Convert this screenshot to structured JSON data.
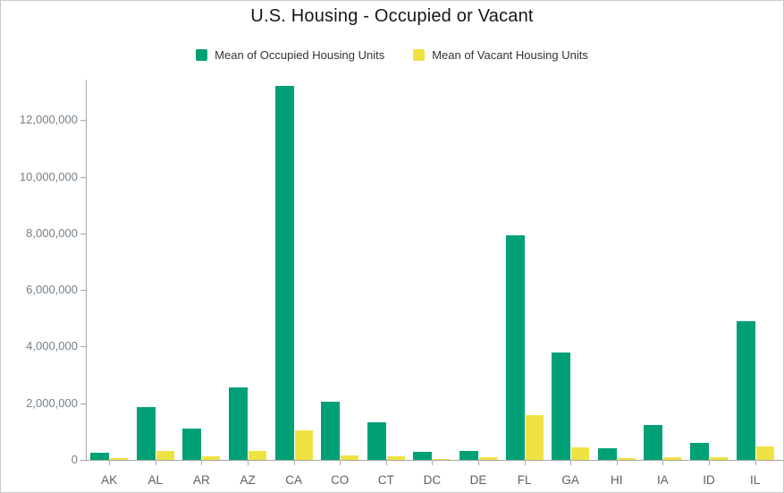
{
  "title": "U.S. Housing - Occupied or Vacant",
  "legend": {
    "items": [
      {
        "label": "Mean of Occupied Housing Units",
        "color": "#00a077"
      },
      {
        "label": "Mean of Vacant Housing Units",
        "color": "#efe243"
      }
    ]
  },
  "chart_data": {
    "type": "bar",
    "title": "U.S. Housing - Occupied or Vacant",
    "xlabel": "",
    "ylabel": "",
    "legend_position": "top",
    "grid": false,
    "ylim": [
      0,
      13400000
    ],
    "categories": [
      "AK",
      "AL",
      "AR",
      "AZ",
      "CA",
      "CO",
      "CT",
      "DC",
      "DE",
      "FL",
      "GA",
      "HI",
      "IA",
      "ID",
      "IL"
    ],
    "series": [
      {
        "name": "Mean of Occupied Housing Units",
        "color": "#00a077",
        "values": [
          250000,
          1850000,
          1120000,
          2560000,
          13200000,
          2070000,
          1330000,
          290000,
          325000,
          7950000,
          3800000,
          420000,
          1240000,
          610000,
          4890000
        ]
      },
      {
        "name": "Mean of Vacant Housing Units",
        "color": "#efe243",
        "values": [
          50000,
          330000,
          140000,
          330000,
          1050000,
          165000,
          120000,
          30000,
          80000,
          1590000,
          430000,
          70000,
          100000,
          90000,
          480000
        ]
      }
    ],
    "y_ticks": [
      {
        "value": 0,
        "label": "0"
      },
      {
        "value": 2000000,
        "label": "2,000,000"
      },
      {
        "value": 4000000,
        "label": "4,000,000"
      },
      {
        "value": 6000000,
        "label": "6,000,000"
      },
      {
        "value": 8000000,
        "label": "8,000,000"
      },
      {
        "value": 10000000,
        "label": "10,000,000"
      },
      {
        "value": 12000000,
        "label": "12,000,000"
      }
    ]
  }
}
